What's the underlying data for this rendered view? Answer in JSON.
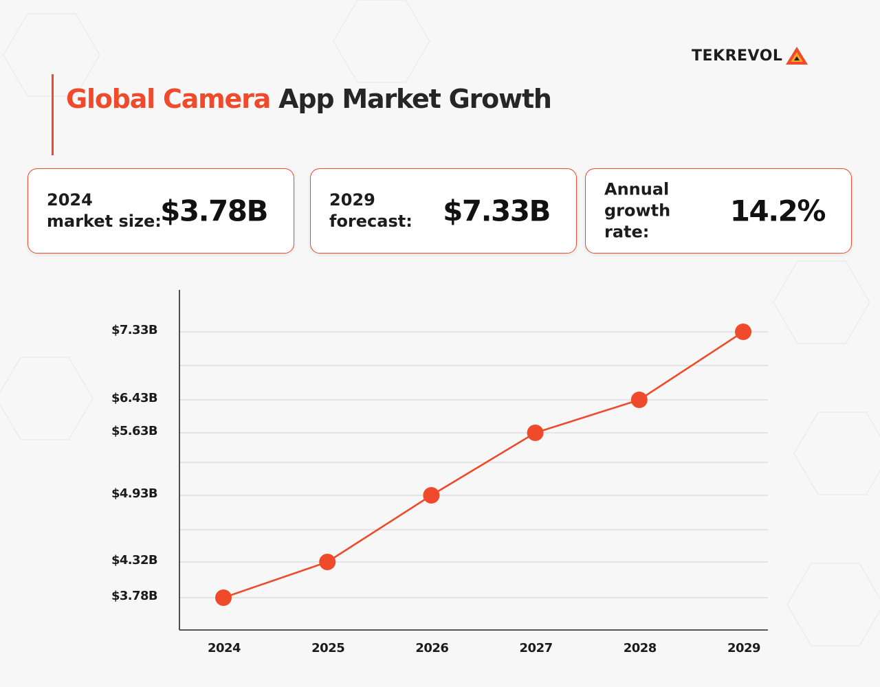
{
  "brand": {
    "name": "TEKREVOL"
  },
  "title": {
    "highlight": "Global Camera",
    "rest": "App Market Growth"
  },
  "colors": {
    "accent": "#ef4a2c",
    "text": "#1c1c1c",
    "grid": "#d9d9d9",
    "background": "#f7f7f7"
  },
  "cards": [
    {
      "label": "2024\nmarket size:",
      "value": "$3.78B"
    },
    {
      "label": "2029\nforecast:",
      "value": "$7.33B"
    },
    {
      "label": "Annual\ngrowth\nrate:",
      "value": "14.2%"
    }
  ],
  "chart_data": {
    "type": "line",
    "title": "",
    "xlabel": "",
    "ylabel": "",
    "categories": [
      "2024",
      "2025",
      "2026",
      "2027",
      "2028",
      "2029"
    ],
    "series": [
      {
        "values": [
          3.78,
          4.32,
          4.93,
          5.63,
          6.43,
          7.33
        ]
      }
    ],
    "y_tick_values": [
      3.78,
      4.32,
      4.93,
      5.63,
      6.43,
      7.33
    ],
    "y_tick_labels": [
      "$3.78B",
      "$4.32B",
      "$4.93B",
      "$5.63B",
      "$6.43B",
      "$7.33B"
    ],
    "grid": true,
    "legend": "none",
    "markers": "filled-circle"
  }
}
